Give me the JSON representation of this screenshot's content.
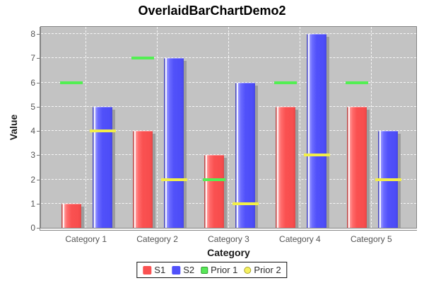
{
  "title": "OverlaidBarChartDemo2",
  "chart_data": {
    "type": "bar",
    "title": "OverlaidBarChartDemo2",
    "xlabel": "Category",
    "ylabel": "Value",
    "categories": [
      "Category 1",
      "Category 2",
      "Category 3",
      "Category 4",
      "Category 5"
    ],
    "series": [
      {
        "name": "S1",
        "render": "bar",
        "color": "#fa5151",
        "legend_shape": "square",
        "swatch_fill": "#fa5151",
        "swatch_border": "#fa5151",
        "values": [
          1,
          4,
          3,
          5,
          5
        ]
      },
      {
        "name": "S2",
        "render": "bar",
        "color": "#5151fa",
        "legend_shape": "square",
        "swatch_fill": "#5151fa",
        "swatch_border": "#5151fa",
        "values": [
          5,
          7,
          6,
          8,
          4
        ]
      },
      {
        "name": "Prior 1",
        "render": "level",
        "color": "#53ef53",
        "legend_shape": "square-outline",
        "swatch_fill": "#58e858",
        "swatch_border": "#2f9f2f",
        "values": [
          6,
          7,
          2,
          6,
          6
        ]
      },
      {
        "name": "Prior 2",
        "render": "level",
        "color": "#f2ee48",
        "legend_shape": "circle-outline",
        "swatch_fill": "#f6f160",
        "swatch_border": "#a8a42e",
        "values": [
          4,
          2,
          1,
          3,
          2
        ]
      }
    ],
    "ylim": [
      0,
      8
    ],
    "yticks": [
      0,
      1,
      2,
      3,
      4,
      5,
      6,
      7,
      8
    ],
    "grid": true,
    "plot_background": "#c3c3c3",
    "gridline_color": "#ffffff",
    "shadow_color": "#9d9d9d",
    "legend_position": "bottom"
  }
}
